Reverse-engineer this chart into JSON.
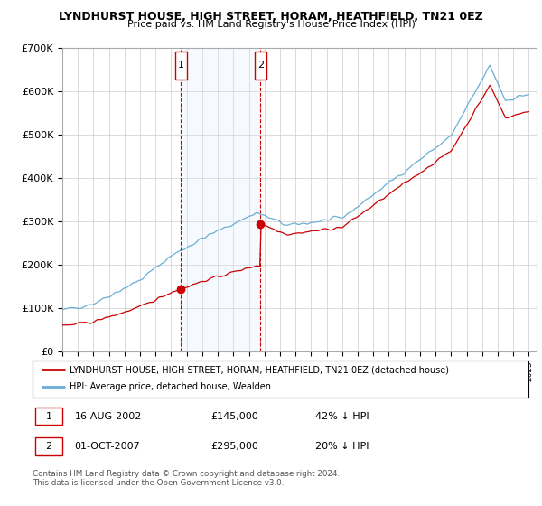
{
  "title": "LYNDHURST HOUSE, HIGH STREET, HORAM, HEATHFIELD, TN21 0EZ",
  "subtitle": "Price paid vs. HM Land Registry's House Price Index (HPI)",
  "ylim": [
    0,
    700000
  ],
  "yticks": [
    0,
    100000,
    200000,
    300000,
    400000,
    500000,
    600000,
    700000
  ],
  "ytick_labels": [
    "£0",
    "£100K",
    "£200K",
    "£300K",
    "£400K",
    "£500K",
    "£600K",
    "£700K"
  ],
  "hpi_color": "#6baed6",
  "price_color": "#cc0000",
  "shade_color": "#ddeeff",
  "marker1_year": 2002.62,
  "marker1_price": 145000,
  "marker1_label": "1",
  "marker2_year": 2007.75,
  "marker2_price": 295000,
  "marker2_label": "2",
  "legend_line1": "LYNDHURST HOUSE, HIGH STREET, HORAM, HEATHFIELD, TN21 0EZ (detached house)",
  "legend_line2": "HPI: Average price, detached house, Wealden",
  "annotation1_date": "16-AUG-2002",
  "annotation1_price": "£145,000",
  "annotation1_hpi": "42% ↓ HPI",
  "annotation2_date": "01-OCT-2007",
  "annotation2_price": "£295,000",
  "annotation2_hpi": "20% ↓ HPI",
  "footer": "Contains HM Land Registry data © Crown copyright and database right 2024.\nThis data is licensed under the Open Government Licence v3.0.",
  "background_color": "#ffffff",
  "grid_color": "#cccccc"
}
